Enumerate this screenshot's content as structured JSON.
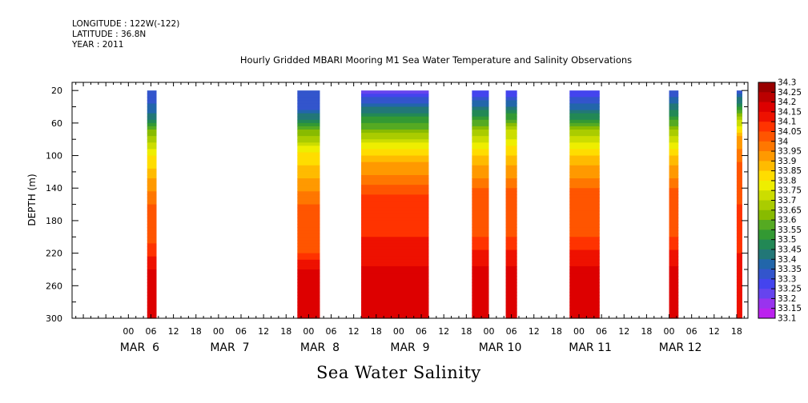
{
  "header": {
    "longitude": "LONGITUDE : 122W(-122)",
    "latitude": "LATITUDE : 36.8N",
    "year": "YEAR : 2011"
  },
  "subtitle": "Sea Water Salinity",
  "chart_data": {
    "type": "heatmap",
    "title": "Hourly Gridded MBARI Mooring M1 Sea Water Temperature and Salinity Observations",
    "ylabel": "DEPTH (m)",
    "xlabel": "",
    "ylim": [
      300,
      10
    ],
    "y_ticks": [
      20,
      60,
      100,
      140,
      180,
      220,
      260,
      300
    ],
    "x_hour_labels": [
      "00",
      "06",
      "12",
      "18",
      "00",
      "06",
      "12",
      "18",
      "00",
      "06",
      "12",
      "18",
      "00",
      "06",
      "12",
      "18",
      "00",
      "06",
      "12",
      "18",
      "00",
      "06",
      "12",
      "18",
      "00",
      "06",
      "12",
      "18"
    ],
    "x_day_labels": [
      "MAR  6",
      "MAR  7",
      "MAR  8",
      "MAR  9",
      "MAR 10",
      "MAR 11",
      "MAR 12"
    ],
    "x_range_hours": [
      -15,
      165
    ],
    "colorbar_levels": [
      34.3,
      34.25,
      34.2,
      34.15,
      34.1,
      34.05,
      34,
      33.95,
      33.9,
      33.85,
      33.8,
      33.75,
      33.7,
      33.65,
      33.6,
      33.55,
      33.5,
      33.45,
      33.4,
      33.35,
      33.3,
      33.25,
      33.2,
      33.15,
      33.1
    ],
    "colorbar_labels": [
      "34.3",
      "34.25",
      "34.2",
      "34.15",
      "34.1",
      "34.05",
      "34",
      "33.95",
      "33.9",
      "33.85",
      "33.8",
      "33.75",
      "33.7",
      "33.65",
      "33.6",
      "33.55",
      "33.5",
      "33.45",
      "33.4",
      "33.35",
      "33.3",
      "33.25",
      "33.2",
      "33.15",
      "33.1"
    ],
    "colorbar_colors": [
      "#990000",
      "#bb0000",
      "#dd0000",
      "#ee1100",
      "#ff3300",
      "#ff5500",
      "#ff7700",
      "#ff9900",
      "#ffbb00",
      "#ffdd00",
      "#eeee00",
      "#ccdd00",
      "#aacc00",
      "#88bb00",
      "#55aa22",
      "#339933",
      "#228855",
      "#227777",
      "#2266aa",
      "#3355cc",
      "#4444ee",
      "#6644ee",
      "#9933ee",
      "#bb22ee",
      "#dd00ee"
    ],
    "data_blocks": [
      {
        "start": 5,
        "end": 7.5,
        "profile": [
          {
            "depth": 20,
            "value": 33.35
          },
          {
            "depth": 50,
            "value": 33.45
          },
          {
            "depth": 75,
            "value": 33.7
          },
          {
            "depth": 100,
            "value": 33.85
          },
          {
            "depth": 130,
            "value": 33.95
          },
          {
            "depth": 160,
            "value": 34.05
          },
          {
            "depth": 210,
            "value": 34.1
          },
          {
            "depth": 240,
            "value": 34.2
          },
          {
            "depth": 265,
            "value": 34.25
          },
          {
            "depth": 300,
            "value": 34.2
          }
        ]
      },
      {
        "start": 45,
        "end": 51,
        "profile": [
          {
            "depth": 20,
            "value": 33.35
          },
          {
            "depth": 45,
            "value": 33.4
          },
          {
            "depth": 70,
            "value": 33.65
          },
          {
            "depth": 95,
            "value": 33.85
          },
          {
            "depth": 130,
            "value": 33.95
          },
          {
            "depth": 160,
            "value": 34.05
          },
          {
            "depth": 220,
            "value": 34.1
          },
          {
            "depth": 240,
            "value": 34.2
          },
          {
            "depth": 265,
            "value": 34.25
          },
          {
            "depth": 300,
            "value": 34.2
          }
        ]
      },
      {
        "start": 62,
        "end": 80,
        "profile": [
          {
            "depth": 20,
            "value": 33.25
          },
          {
            "depth": 40,
            "value": 33.45
          },
          {
            "depth": 60,
            "value": 33.6
          },
          {
            "depth": 85,
            "value": 33.8
          },
          {
            "depth": 110,
            "value": 33.95
          },
          {
            "depth": 150,
            "value": 34.1
          },
          {
            "depth": 200,
            "value": 34.15
          },
          {
            "depth": 235,
            "value": 34.2
          },
          {
            "depth": 255,
            "value": 34.25
          },
          {
            "depth": 300,
            "value": 34.2
          }
        ]
      },
      {
        "start": 91.5,
        "end": 96,
        "profile": [
          {
            "depth": 20,
            "value": 33.3
          },
          {
            "depth": 45,
            "value": 33.5
          },
          {
            "depth": 75,
            "value": 33.75
          },
          {
            "depth": 100,
            "value": 33.9
          },
          {
            "depth": 140,
            "value": 34.05
          },
          {
            "depth": 200,
            "value": 34.1
          },
          {
            "depth": 235,
            "value": 34.2
          },
          {
            "depth": 300,
            "value": 34.25
          }
        ]
      },
      {
        "start": 100.5,
        "end": 103.5,
        "profile": [
          {
            "depth": 20,
            "value": 33.3
          },
          {
            "depth": 40,
            "value": 33.45
          },
          {
            "depth": 70,
            "value": 33.75
          },
          {
            "depth": 100,
            "value": 33.9
          },
          {
            "depth": 140,
            "value": 34.05
          },
          {
            "depth": 200,
            "value": 34.1
          },
          {
            "depth": 235,
            "value": 34.2
          },
          {
            "depth": 300,
            "value": 34.25
          }
        ]
      },
      {
        "start": 117.5,
        "end": 125.5,
        "profile": [
          {
            "depth": 20,
            "value": 33.3
          },
          {
            "depth": 45,
            "value": 33.45
          },
          {
            "depth": 70,
            "value": 33.7
          },
          {
            "depth": 100,
            "value": 33.9
          },
          {
            "depth": 140,
            "value": 34.05
          },
          {
            "depth": 200,
            "value": 34.1
          },
          {
            "depth": 235,
            "value": 34.2
          },
          {
            "depth": 260,
            "value": 34.25
          },
          {
            "depth": 300,
            "value": 34.2
          }
        ]
      },
      {
        "start": 144,
        "end": 146.5,
        "profile": [
          {
            "depth": 20,
            "value": 33.35
          },
          {
            "depth": 45,
            "value": 33.5
          },
          {
            "depth": 75,
            "value": 33.75
          },
          {
            "depth": 100,
            "value": 33.9
          },
          {
            "depth": 140,
            "value": 34.05
          },
          {
            "depth": 200,
            "value": 34.1
          },
          {
            "depth": 235,
            "value": 34.2
          },
          {
            "depth": 260,
            "value": 34.25
          },
          {
            "depth": 300,
            "value": 34.2
          }
        ]
      },
      {
        "start": 162,
        "end": 163.5,
        "profile": [
          {
            "depth": 20,
            "value": 33.35
          },
          {
            "depth": 45,
            "value": 33.6
          },
          {
            "depth": 75,
            "value": 33.95
          },
          {
            "depth": 110,
            "value": 34.05
          },
          {
            "depth": 160,
            "value": 34.1
          },
          {
            "depth": 220,
            "value": 34.15
          },
          {
            "depth": 300,
            "value": 34.2
          }
        ]
      }
    ],
    "colors": {
      "axis": "#000000",
      "background": "#ffffff"
    }
  }
}
